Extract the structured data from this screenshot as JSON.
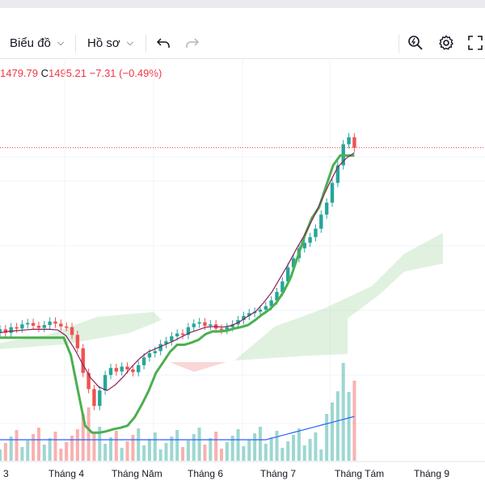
{
  "toolbar": {
    "chart_menu_label": "Biểu đồ",
    "profile_menu_label": "Hồ sơ",
    "icons": [
      "undo-icon",
      "redo-icon",
      "quick-search-icon",
      "settings-icon",
      "fullscreen-icon"
    ]
  },
  "legend": {
    "low_value": "1479.79",
    "close_key": "C",
    "close_value": "1495.21",
    "change": "−7.31",
    "change_pct": "(−0.49%)"
  },
  "colors": {
    "up": "#26a69a",
    "down": "#ef5350",
    "kijun": "#4caf50",
    "ma": "#8e1d5b",
    "cloud": "#a5d6a7",
    "volume_ma": "#2962ff",
    "price_line": "#f23645"
  },
  "chart_data": {
    "type": "line",
    "x_ticks": [
      "3",
      "Tháng 4",
      "Tháng Năm",
      "Tháng 6",
      "Tháng 7",
      "Tháng Tám",
      "Tháng 9"
    ],
    "last_close": 1495.21,
    "series": [
      {
        "values": [
          1237,
          1232,
          1240,
          1238,
          1244,
          1246,
          1242,
          1239,
          1243,
          1248,
          1245,
          1241,
          1240,
          1229,
          1210,
          1175,
          1152,
          1128,
          1150,
          1172,
          1182,
          1177,
          1184,
          1180,
          1176,
          1186,
          1197,
          1203,
          1206,
          1216,
          1220,
          1227,
          1231,
          1229,
          1240,
          1245,
          1247,
          1242,
          1244,
          1238,
          1236,
          1240,
          1244,
          1250,
          1256,
          1260,
          1262,
          1265,
          1270,
          1278,
          1290,
          1305,
          1325,
          1338,
          1352,
          1360,
          1368,
          1380,
          1400,
          1417,
          1445,
          1470,
          1500,
          1510,
          1495
        ]
      },
      {
        "name": "kijun",
        "values": [
          1225,
          1225,
          1225,
          1225,
          1225,
          1225,
          1225,
          1225,
          1225,
          1225,
          1200,
          1150,
          1100,
          1090,
          1090,
          1092,
          1095,
          1097,
          1100,
          1112,
          1130,
          1150,
          1175,
          1190,
          1205,
          1215,
          1215,
          1218,
          1222,
          1230,
          1234,
          1234,
          1235,
          1238,
          1240,
          1243,
          1250,
          1258,
          1265,
          1275,
          1290,
          1310,
          1340,
          1370,
          1395,
          1410,
          1440,
          1470,
          1484,
          1484,
          1484
        ]
      },
      {
        "name": "ma",
        "values": [
          1232,
          1234,
          1235,
          1236,
          1237,
          1237,
          1237,
          1236,
          1228,
          1210,
          1188,
          1168,
          1155,
          1150,
          1158,
          1170,
          1184,
          1196,
          1205,
          1210,
          1215,
          1220,
          1226,
          1232,
          1236,
          1240,
          1241,
          1240,
          1242,
          1247,
          1255,
          1262,
          1275,
          1290,
          1310,
          1330,
          1352,
          1372,
          1395,
          1420,
          1445,
          1468,
          1480,
          1488
        ]
      }
    ]
  }
}
